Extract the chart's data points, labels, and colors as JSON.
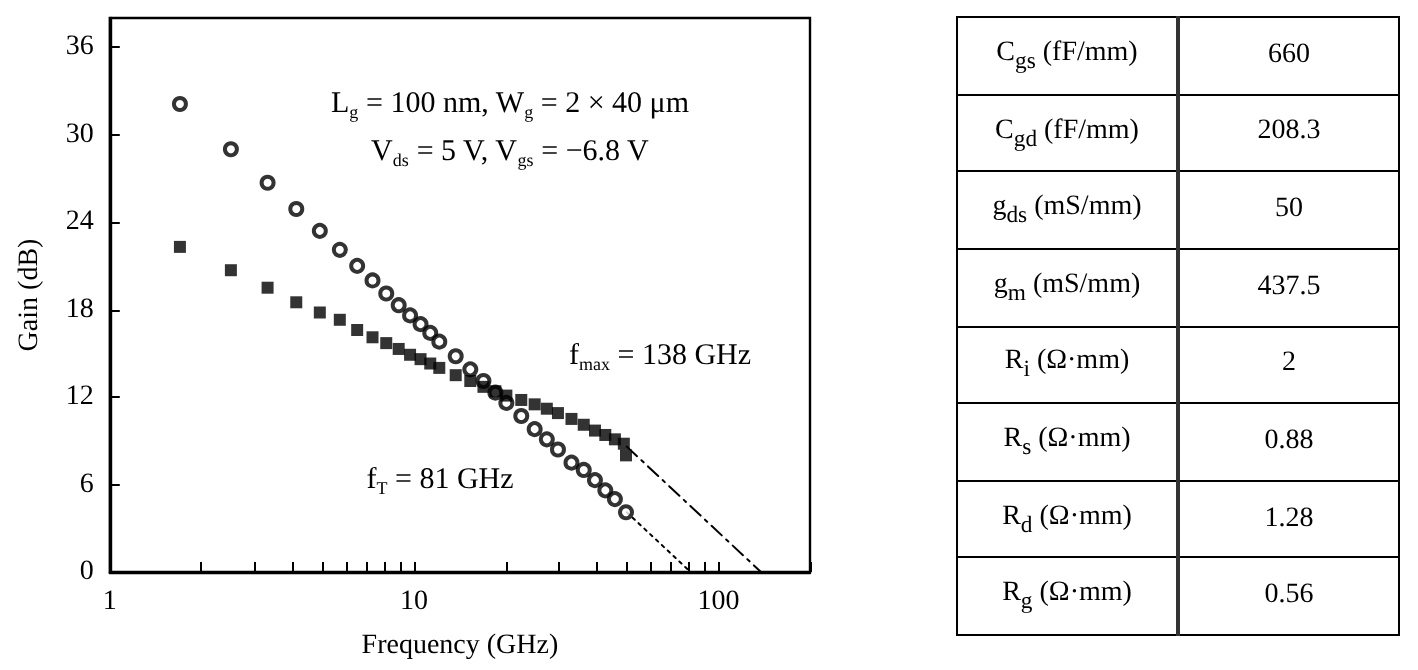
{
  "chart_data": [
    {
      "type": "scatter",
      "xlabel": "Frequency (GHz)",
      "ylabel": "Gain (dB)",
      "log": "x",
      "xlim": [
        1,
        200
      ],
      "xticks": [
        1,
        {
          "value": 2,
          "label": null
        },
        {
          "value": 3,
          "label": null
        },
        {
          "value": 4,
          "label": null
        },
        {
          "value": 5,
          "label": null
        },
        {
          "value": 6,
          "label": null
        },
        {
          "value": 7,
          "label": null
        },
        {
          "value": 8,
          "label": null
        },
        {
          "value": 9,
          "label": null
        },
        10,
        {
          "value": 20,
          "label": null
        },
        {
          "value": 30,
          "label": null
        },
        {
          "value": 40,
          "label": null
        },
        {
          "value": 50,
          "label": null
        },
        {
          "value": 60,
          "label": null
        },
        {
          "value": 70,
          "label": null
        },
        {
          "value": 80,
          "label": null
        },
        {
          "value": 90,
          "label": null
        },
        100,
        {
          "value": 200,
          "label": null
        }
      ],
      "ylim": [
        0,
        38
      ],
      "yticks": [
        0,
        6,
        12,
        18,
        24,
        30,
        36
      ],
      "grid": false,
      "series": [
        {
          "type": "scatter",
          "marker": "circle",
          "color": "#000000",
          "x": [
            1.7,
            2.5,
            3.3,
            4.1,
            4.9,
            5.7,
            6.5,
            7.3,
            8.1,
            8.9,
            9.7,
            10.5,
            11.3,
            12.1,
            13.7,
            15.3,
            16.9,
            18.5,
            20.1,
            22.5,
            24.9,
            27.3,
            29.7,
            32.9,
            36.1,
            39.3,
            42.5,
            45.7,
            49.7
          ],
          "values": [
            32.1,
            29.0,
            26.7,
            24.9,
            23.4,
            22.1,
            21.0,
            20.0,
            19.1,
            18.3,
            17.6,
            17.0,
            16.4,
            15.8,
            14.8,
            13.9,
            13.1,
            12.3,
            11.6,
            10.7,
            9.8,
            9.1,
            8.4,
            7.5,
            7.0,
            6.3,
            5.6,
            5.0,
            4.1
          ]
        },
        {
          "type": "scatter",
          "marker": "square",
          "color": "#000000",
          "x": [
            1.7,
            2.5,
            3.3,
            4.1,
            4.9,
            5.7,
            6.5,
            7.3,
            8.1,
            8.9,
            9.7,
            10.5,
            11.3,
            12.1,
            13.7,
            15.3,
            16.9,
            18.5,
            20.1,
            22.5,
            24.9,
            27.3,
            29.7,
            32.9,
            36.1,
            39.3,
            42.5,
            45.7,
            48.9,
            49.7
          ],
          "values": [
            22.3,
            20.7,
            19.5,
            18.5,
            17.8,
            17.3,
            16.6,
            16.1,
            15.7,
            15.3,
            14.9,
            14.6,
            14.3,
            14.0,
            13.5,
            13.1,
            12.7,
            12.4,
            12.1,
            11.8,
            11.5,
            11.2,
            10.9,
            10.5,
            10.1,
            9.7,
            9.4,
            9.1,
            8.8,
            8.0
          ]
        },
        {
          "type": "line",
          "marker": "none",
          "line_style": "dashed",
          "color": "#000000",
          "x": [
            50,
            138
          ],
          "values": [
            8.6,
            0
          ]
        },
        {
          "type": "line",
          "marker": "none",
          "line_style": "dotted",
          "color": "#000000",
          "x": [
            50,
            81
          ],
          "values": [
            4.1,
            0
          ]
        }
      ],
      "annotations": [
        "L$_{g}$ = 100 nm, W$_{g}$ = 2 × 40 μm",
        "V$_{ds}$ = 5 V, V$_{gs}$ = −6.8 V",
        "f$_{max}$ = 138 GHz",
        "f$_{T}$ = 81 GHz"
      ]
    },
    {
      "type": "other",
      "categories": [
        "C$_{gs}$ (fF/mm)",
        "C$_{gd}$ (fF/mm)",
        "g$_{ds}$ (mS/mm)",
        "g$_{m}$ (mS/mm)",
        "R$_{i}$ (Ω·mm)",
        "R$_{s}$ (Ω·mm)",
        "R$_{d}$ (Ω·mm)",
        "R$_{g}$ (Ω·mm)"
      ],
      "values": [
        660,
        208.3,
        50,
        437.5,
        2,
        0.88,
        1.28,
        0.56
      ],
      "data_labels": true
    }
  ]
}
